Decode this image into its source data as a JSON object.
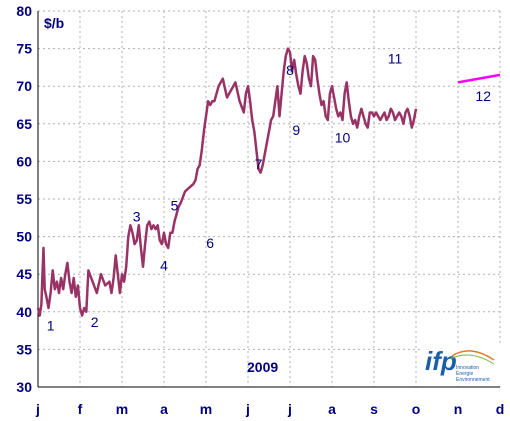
{
  "chart_data": {
    "type": "line",
    "unit_label": "$/b",
    "year_label": "2009",
    "ylim": [
      30,
      80
    ],
    "y_ticks": [
      "30",
      "35",
      "40",
      "45",
      "50",
      "55",
      "60",
      "65",
      "70",
      "75",
      "80"
    ],
    "x_ticks": [
      "j",
      "f",
      "m",
      "a",
      "m",
      "j",
      "j",
      "a",
      "s",
      "o",
      "n",
      "d"
    ],
    "grid": true,
    "series": [
      {
        "color": "#993366",
        "x": [
          0.0,
          0.04,
          0.08,
          0.1,
          0.13,
          0.16,
          0.2,
          0.25,
          0.3,
          0.35,
          0.4,
          0.45,
          0.5,
          0.55,
          0.6,
          0.65,
          0.7,
          0.75,
          0.8,
          0.85,
          0.9,
          0.95,
          1.0,
          1.05,
          1.1,
          1.15,
          1.2,
          1.3,
          1.4,
          1.5,
          1.6,
          1.7,
          1.75,
          1.8,
          1.85,
          1.9,
          1.95,
          2.0,
          2.05,
          2.1,
          2.15,
          2.2,
          2.25,
          2.3,
          2.35,
          2.4,
          2.45,
          2.5,
          2.55,
          2.6,
          2.65,
          2.7,
          2.75,
          2.8,
          2.85,
          2.9,
          2.95,
          3.0,
          3.05,
          3.1,
          3.15,
          3.2,
          3.25,
          3.3,
          3.35,
          3.4,
          3.5,
          3.6,
          3.7,
          3.75,
          3.8,
          3.85,
          3.9,
          3.95,
          4.0,
          4.05,
          4.1,
          4.15,
          4.2,
          4.3,
          4.4,
          4.5,
          4.6,
          4.7,
          4.8,
          4.9,
          4.95,
          5.0,
          5.05,
          5.1,
          5.15,
          5.2,
          5.25,
          5.3,
          5.35,
          5.4,
          5.45,
          5.5,
          5.55,
          5.6,
          5.65,
          5.7,
          5.75,
          5.8,
          5.85,
          5.9,
          5.95,
          6.0,
          6.05,
          6.1,
          6.15,
          6.2,
          6.25,
          6.3,
          6.35,
          6.4,
          6.45,
          6.5,
          6.55,
          6.6,
          6.65,
          6.7,
          6.75,
          6.8,
          6.85,
          6.9,
          6.95,
          7.0,
          7.05,
          7.1,
          7.15,
          7.2,
          7.25,
          7.3,
          7.35,
          7.4,
          7.45,
          7.5,
          7.55,
          7.6,
          7.65,
          7.7,
          7.75,
          7.8,
          7.85,
          7.9,
          7.95,
          8.0,
          8.05,
          8.1,
          8.15,
          8.2,
          8.25,
          8.3,
          8.35,
          8.4,
          8.45,
          8.5,
          8.55,
          8.6,
          8.65,
          8.7,
          8.75,
          8.8,
          8.85,
          8.9,
          8.95,
          9.0
        ],
        "y": [
          40.5,
          39.5,
          41.0,
          44.0,
          48.5,
          43.0,
          42.0,
          40.5,
          42.5,
          45.5,
          43.0,
          44.0,
          42.5,
          44.5,
          43.0,
          45.0,
          46.5,
          44.0,
          42.5,
          44.5,
          42.0,
          43.5,
          40.5,
          39.5,
          40.5,
          40.0,
          45.5,
          44.0,
          42.5,
          45.0,
          43.5,
          44.0,
          42.5,
          44.5,
          47.5,
          45.0,
          42.5,
          45.0,
          44.0,
          46.0,
          50.0,
          51.5,
          50.5,
          49.0,
          49.5,
          51.5,
          48.5,
          46.0,
          49.0,
          51.5,
          52.0,
          51.0,
          51.5,
          51.0,
          51.5,
          49.5,
          49.0,
          50.5,
          49.0,
          48.5,
          50.5,
          50.5,
          52.0,
          53.0,
          54.0,
          54.5,
          56.0,
          56.5,
          57.0,
          57.5,
          59.0,
          59.5,
          61.5,
          64.0,
          66.0,
          68.0,
          67.5,
          68.0,
          68.0,
          70.0,
          71.0,
          68.5,
          69.5,
          70.5,
          68.0,
          66.5,
          69.0,
          70.0,
          68.0,
          65.5,
          64.0,
          61.5,
          59.0,
          58.5,
          59.5,
          61.0,
          62.5,
          64.0,
          65.5,
          66.0,
          68.0,
          70.0,
          66.0,
          69.0,
          72.0,
          74.0,
          75.0,
          74.5,
          72.0,
          73.5,
          71.5,
          70.0,
          69.0,
          72.0,
          74.0,
          73.0,
          71.0,
          70.0,
          74.0,
          73.5,
          71.0,
          69.0,
          67.5,
          68.0,
          66.0,
          65.5,
          69.0,
          70.0,
          68.5,
          67.0,
          66.0,
          66.5,
          65.5,
          69.0,
          70.5,
          68.0,
          66.0,
          65.0,
          65.5,
          64.5,
          66.0,
          67.0,
          66.0,
          65.0,
          64.5,
          66.5,
          66.5,
          66.0,
          66.5,
          66.0,
          65.5,
          66.0,
          66.5,
          65.5,
          66.0,
          67.0,
          66.5,
          65.5,
          66.0,
          66.5,
          66.0,
          65.0,
          66.5,
          67.0,
          66.0,
          64.5,
          65.5,
          67.0
        ]
      },
      {
        "color": "#ff00ff",
        "x": [
          10.0,
          11.0
        ],
        "y": [
          70.5,
          71.5
        ]
      }
    ],
    "annotations": [
      {
        "text": "1",
        "x": 0.3,
        "y": 37.5
      },
      {
        "text": "2",
        "x": 1.35,
        "y": 38.0
      },
      {
        "text": "3",
        "x": 2.35,
        "y": 52.0
      },
      {
        "text": "4",
        "x": 3.0,
        "y": 45.5
      },
      {
        "text": "5",
        "x": 3.25,
        "y": 53.5
      },
      {
        "text": "6",
        "x": 4.1,
        "y": 48.5
      },
      {
        "text": "7",
        "x": 5.25,
        "y": 59.0
      },
      {
        "text": "8",
        "x": 6.0,
        "y": 71.5
      },
      {
        "text": "9",
        "x": 6.15,
        "y": 63.5
      },
      {
        "text": "10",
        "x": 7.25,
        "y": 62.5
      },
      {
        "text": "11",
        "x": 8.5,
        "y": 73.0
      },
      {
        "text": "12",
        "x": 10.6,
        "y": 68.0
      }
    ]
  },
  "logo": {
    "mark": "ifp",
    "line1": "Innovation",
    "line2": "Énergie",
    "line3": "Environnement"
  }
}
